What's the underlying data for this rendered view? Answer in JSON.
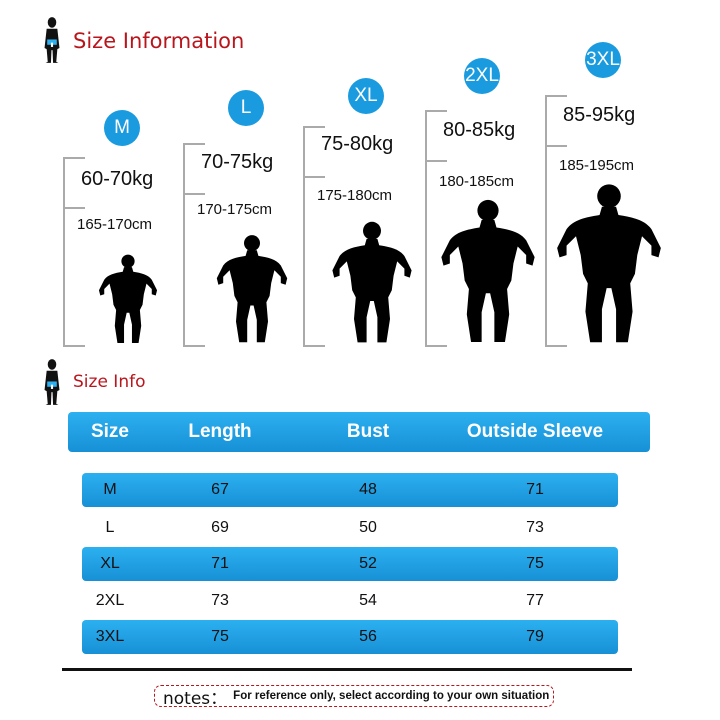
{
  "header": {
    "title": "Size Information",
    "icon": "person-icon"
  },
  "sizes": [
    {
      "label": "M",
      "weight": "60-70kg",
      "height": "165-170cm"
    },
    {
      "label": "L",
      "weight": "70-75kg",
      "height": "170-175cm"
    },
    {
      "label": "XL",
      "weight": "75-80kg",
      "height": "175-180cm"
    },
    {
      "label": "2XL",
      "weight": "80-85kg",
      "height": "180-185cm"
    },
    {
      "label": "3XL",
      "weight": "85-95kg",
      "height": "185-195cm"
    }
  ],
  "table": {
    "title": "Size Info",
    "columns": [
      "Size",
      "Length",
      "Bust",
      "Outside Sleeve"
    ],
    "rows": [
      [
        "M",
        "67",
        "48",
        "71"
      ],
      [
        "L",
        "69",
        "50",
        "73"
      ],
      [
        "XL",
        "71",
        "52",
        "75"
      ],
      [
        "2XL",
        "73",
        "54",
        "77"
      ],
      [
        "3XL",
        "75",
        "56",
        "79"
      ]
    ]
  },
  "notes": {
    "label": "notes：",
    "text": "For reference only, select according to your own situation"
  },
  "colors": {
    "accent": "#1a9be0",
    "title": "#b8161c"
  }
}
